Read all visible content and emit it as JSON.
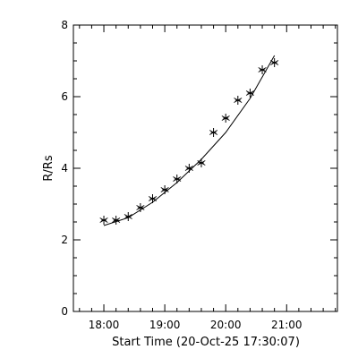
{
  "chart_data": {
    "type": "scatter",
    "xlabel": "Start Time (20-Oct-25 17:30:07)",
    "ylabel": "R/Rs",
    "x_axis": {
      "unit": "time",
      "min": "17:30",
      "max": "21:50",
      "ticks": [
        "18:00",
        "19:00",
        "20:00",
        "21:00"
      ]
    },
    "y_axis": {
      "min": 0,
      "max": 8,
      "ticks": [
        "0",
        "2",
        "4",
        "6",
        "8"
      ]
    },
    "grid": false,
    "legend": "none",
    "series": [
      {
        "marker": "asterisk",
        "points": [
          {
            "x": "18:00",
            "y": 2.55
          },
          {
            "x": "18:12",
            "y": 2.55
          },
          {
            "x": "18:24",
            "y": 2.65
          },
          {
            "x": "18:36",
            "y": 2.9
          },
          {
            "x": "18:48",
            "y": 3.15
          },
          {
            "x": "19:00",
            "y": 3.4
          },
          {
            "x": "19:12",
            "y": 3.7
          },
          {
            "x": "19:24",
            "y": 4.0
          },
          {
            "x": "19:36",
            "y": 4.15
          },
          {
            "x": "19:48",
            "y": 5.0
          },
          {
            "x": "20:00",
            "y": 5.4
          },
          {
            "x": "20:12",
            "y": 5.9
          },
          {
            "x": "20:24",
            "y": 6.1
          },
          {
            "x": "20:36",
            "y": 6.75
          },
          {
            "x": "20:48",
            "y": 6.95
          }
        ]
      }
    ],
    "fit_curve": {
      "type": "quadratic",
      "points": [
        {
          "x": "18:00",
          "y": 2.4
        },
        {
          "x": "18:24",
          "y": 2.62
        },
        {
          "x": "18:48",
          "y": 3.05
        },
        {
          "x": "19:12",
          "y": 3.6
        },
        {
          "x": "19:36",
          "y": 4.25
        },
        {
          "x": "20:00",
          "y": 5.0
        },
        {
          "x": "20:24",
          "y": 5.95
        },
        {
          "x": "20:48",
          "y": 7.15
        }
      ]
    },
    "colors": {
      "foreground": "#000000",
      "background": "#ffffff"
    }
  }
}
